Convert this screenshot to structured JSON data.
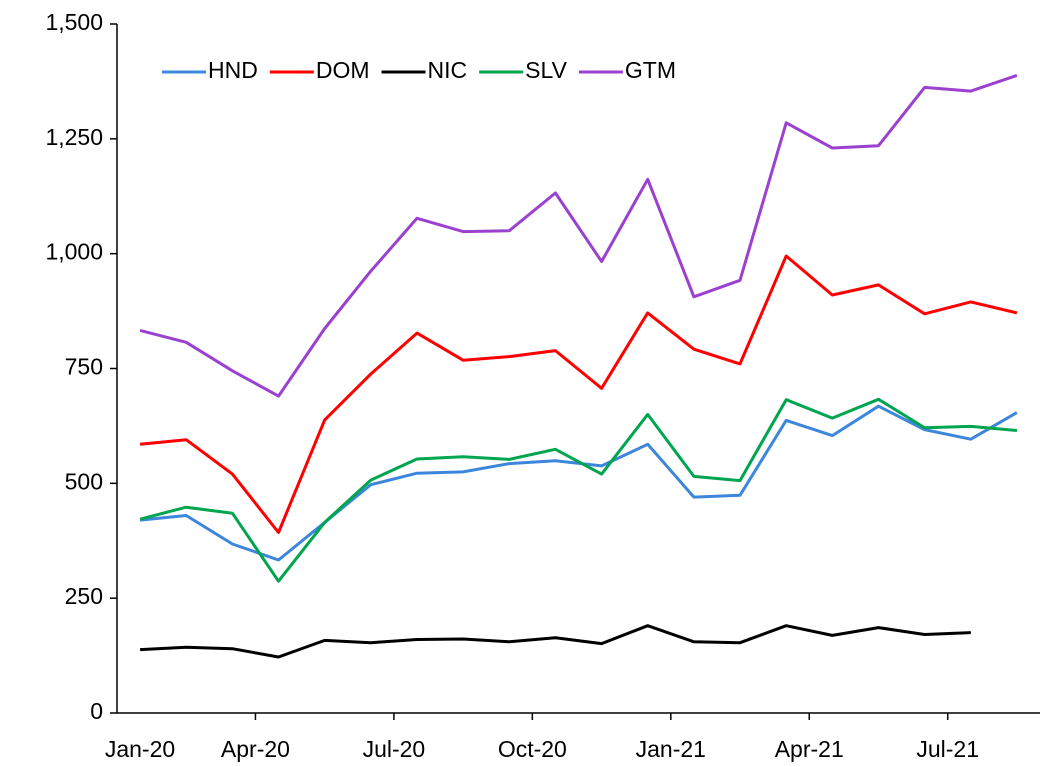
{
  "chart_data": {
    "type": "line",
    "categories": [
      "Jan-20",
      null,
      null,
      "Apr-20",
      null,
      null,
      "Jul-20",
      null,
      null,
      "Oct-20",
      null,
      null,
      "Jan-21",
      null,
      null,
      "Apr-21",
      null,
      null,
      "Jul-21",
      null
    ],
    "series": [
      {
        "name": "HND",
        "color": "#3c87dc",
        "values": [
          420,
          430,
          368,
          333,
          415,
          497,
          522,
          525,
          543,
          549,
          538,
          585,
          470,
          474,
          637,
          604,
          668,
          617,
          596,
          654
        ]
      },
      {
        "name": "DOM",
        "color": "#ff0000",
        "values": [
          585,
          595,
          520,
          393,
          638,
          738,
          827,
          768,
          776,
          789,
          707,
          871,
          792,
          760,
          995,
          910,
          932,
          869,
          895,
          871
        ]
      },
      {
        "name": "NIC",
        "color": "#000000",
        "values": [
          138,
          143,
          140,
          122,
          158,
          153,
          160,
          161,
          155,
          164,
          151,
          190,
          155,
          153,
          190,
          169,
          186,
          171,
          175,
          null
        ]
      },
      {
        "name": "SLV",
        "color": "#00a550",
        "values": [
          422,
          448,
          435,
          287,
          415,
          507,
          553,
          558,
          552,
          574,
          520,
          650,
          515,
          506,
          682,
          642,
          683,
          621,
          624,
          615
        ]
      },
      {
        "name": "GTM",
        "color": "#9b41d0",
        "values": [
          833,
          807,
          745,
          690,
          837,
          962,
          1077,
          1048,
          1050,
          1132,
          983,
          1162,
          906,
          942,
          1285,
          1230,
          1235,
          1362,
          1354,
          1388
        ]
      }
    ],
    "ylim": [
      0,
      1500
    ],
    "yticks": [
      0,
      250,
      500,
      750,
      {
        "value": 1000,
        "label": "1,000"
      },
      {
        "value": 1250,
        "label": "1,250"
      },
      {
        "value": 1500,
        "label": "1,500"
      }
    ],
    "legend": "upper left"
  }
}
